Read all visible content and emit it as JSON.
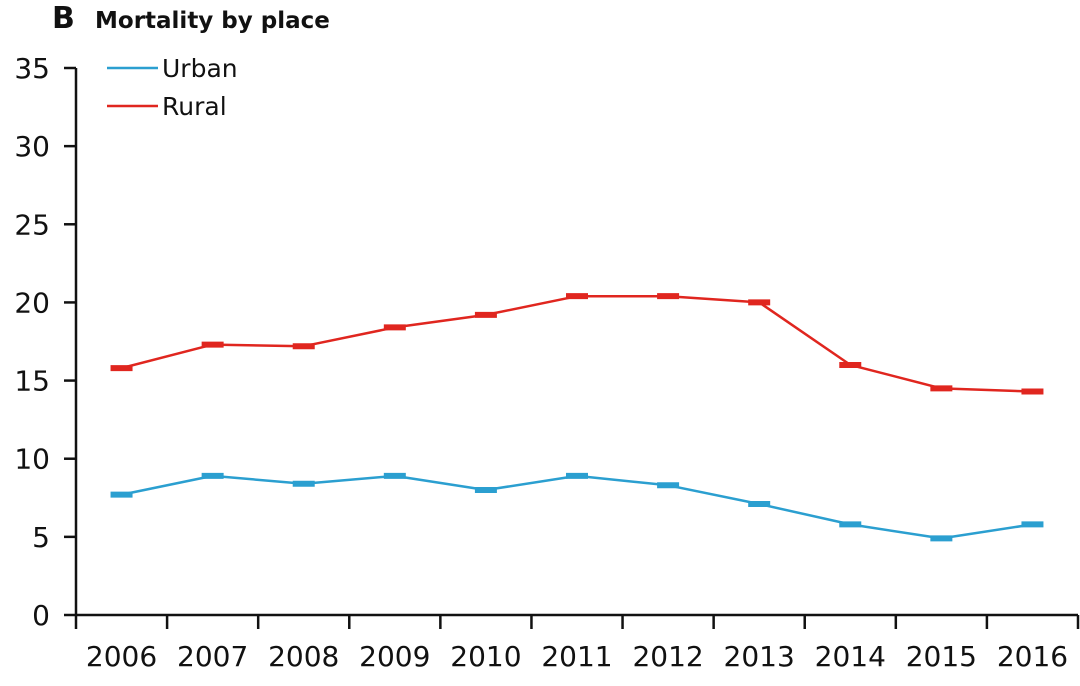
{
  "chart_data": {
    "type": "line",
    "panel_label": "B",
    "title": "Mortality by place",
    "xlabel": "",
    "ylabel": "",
    "categories": [
      "2006",
      "2007",
      "2008",
      "2009",
      "2010",
      "2011",
      "2012",
      "2013",
      "2014",
      "2015",
      "2016"
    ],
    "ylim": [
      0,
      35
    ],
    "yticks": [
      "0",
      "5",
      "10",
      "15",
      "20",
      "25",
      "30",
      "35"
    ],
    "grid": false,
    "legend_position": "top-left",
    "series": [
      {
        "name": "Urban",
        "color": "#2b9fd0",
        "values": [
          7.7,
          8.9,
          8.4,
          8.9,
          8.0,
          8.9,
          8.3,
          7.1,
          5.8,
          4.9,
          5.8
        ]
      },
      {
        "name": "Rural",
        "color": "#e0261f",
        "values": [
          15.8,
          17.3,
          17.2,
          18.4,
          19.2,
          20.4,
          20.4,
          20.0,
          16.0,
          14.5,
          14.3
        ]
      }
    ]
  }
}
